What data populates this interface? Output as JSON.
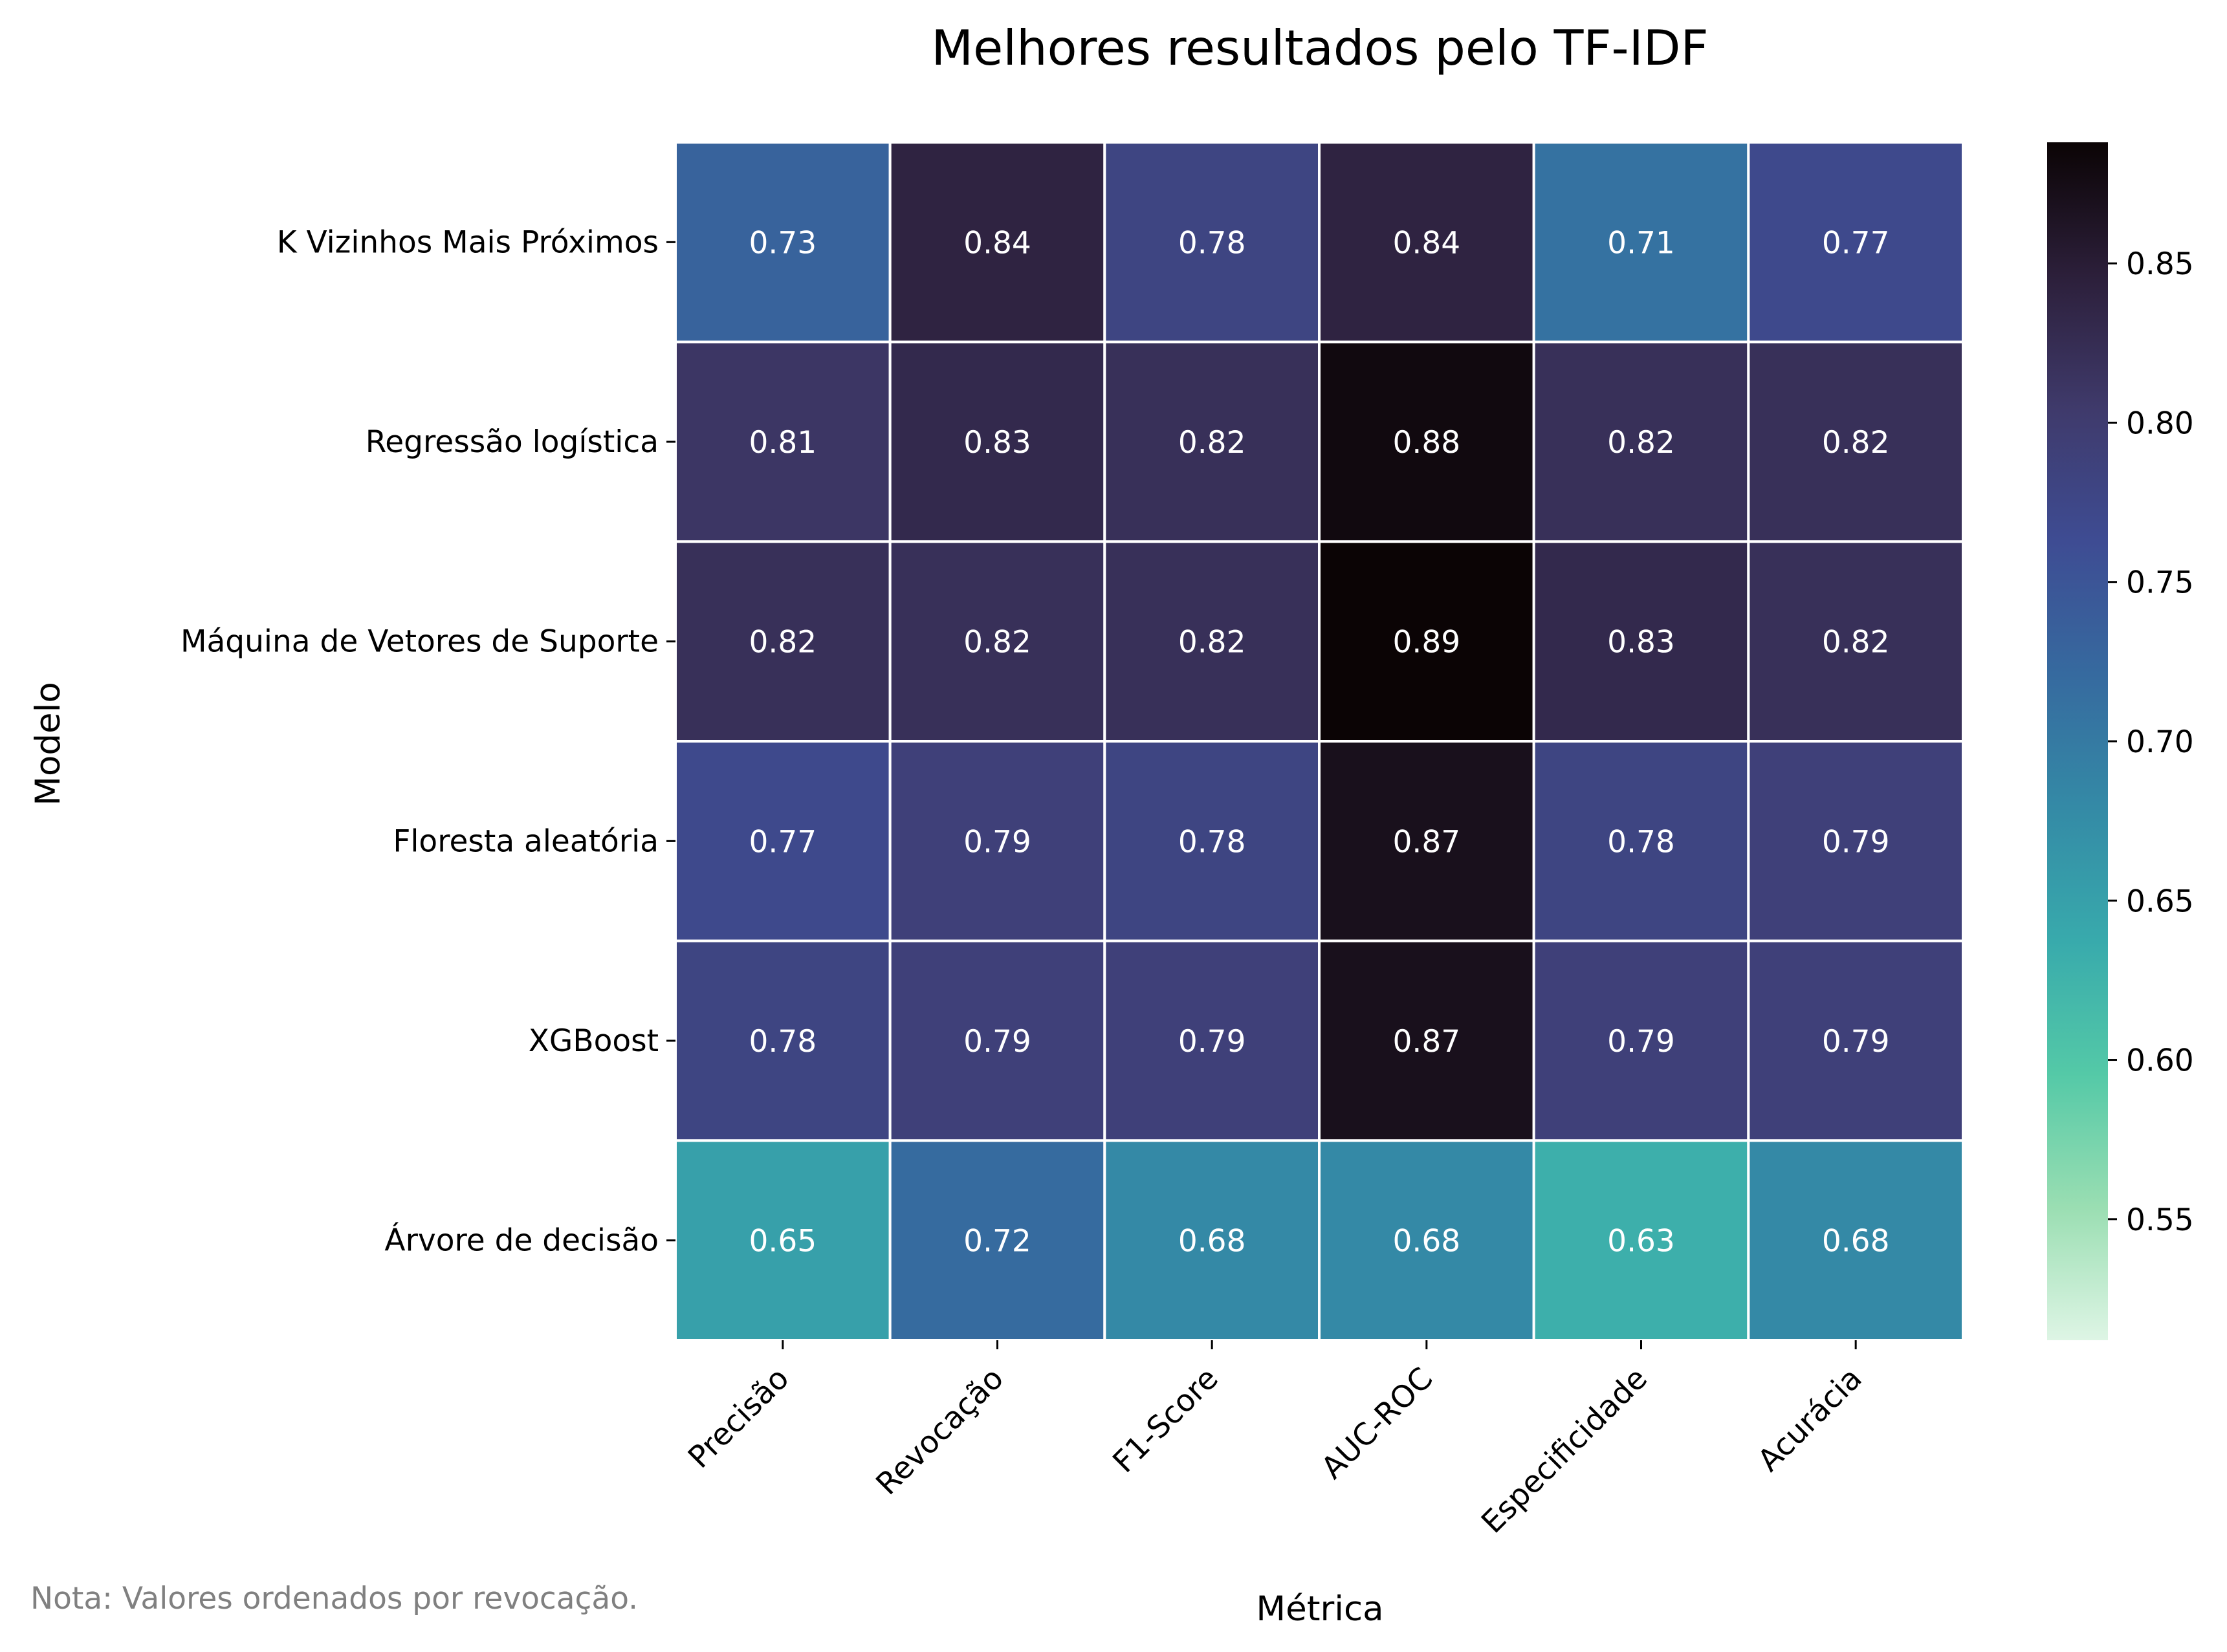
{
  "chart_data": {
    "type": "heatmap",
    "title": "Melhores resultados pelo TF-IDF",
    "xlabel": "Métrica",
    "ylabel": "Modelo",
    "columns": [
      "Precisão",
      "Revocação",
      "F1-Score",
      "AUC-ROC",
      "Especificidade",
      "Acurácia"
    ],
    "rows": [
      "K Vizinhos Mais Próximos",
      "Regressão logística",
      "Máquina de Vetores de Suporte",
      "Floresta aleatória",
      "XGBoost",
      "Árvore de decisão"
    ],
    "values": [
      [
        0.73,
        0.84,
        0.78,
        0.84,
        0.71,
        0.77
      ],
      [
        0.81,
        0.83,
        0.82,
        0.88,
        0.82,
        0.82
      ],
      [
        0.82,
        0.82,
        0.82,
        0.89,
        0.83,
        0.82
      ],
      [
        0.77,
        0.79,
        0.78,
        0.87,
        0.78,
        0.79
      ],
      [
        0.78,
        0.79,
        0.79,
        0.87,
        0.79,
        0.79
      ],
      [
        0.65,
        0.72,
        0.68,
        0.68,
        0.63,
        0.68
      ]
    ],
    "colorbar": {
      "colormap": "mako_r",
      "vmin": 0.512,
      "vmax": 0.888,
      "ticks": [
        0.55,
        0.6,
        0.65,
        0.7,
        0.75,
        0.8,
        0.85
      ],
      "tick_labels": [
        "0.55",
        "0.60",
        "0.65",
        "0.70",
        "0.75",
        "0.80",
        "0.85"
      ],
      "stops": [
        "#DEF5E5",
        "#9ADEB2",
        "#54C9A7",
        "#38AAAC",
        "#348AA6",
        "#366A9F",
        "#3E4C93",
        "#3F3A6B",
        "#2C1F3A",
        "#0B0405"
      ]
    }
  },
  "note": "Nota: Valores ordenados por revocação."
}
